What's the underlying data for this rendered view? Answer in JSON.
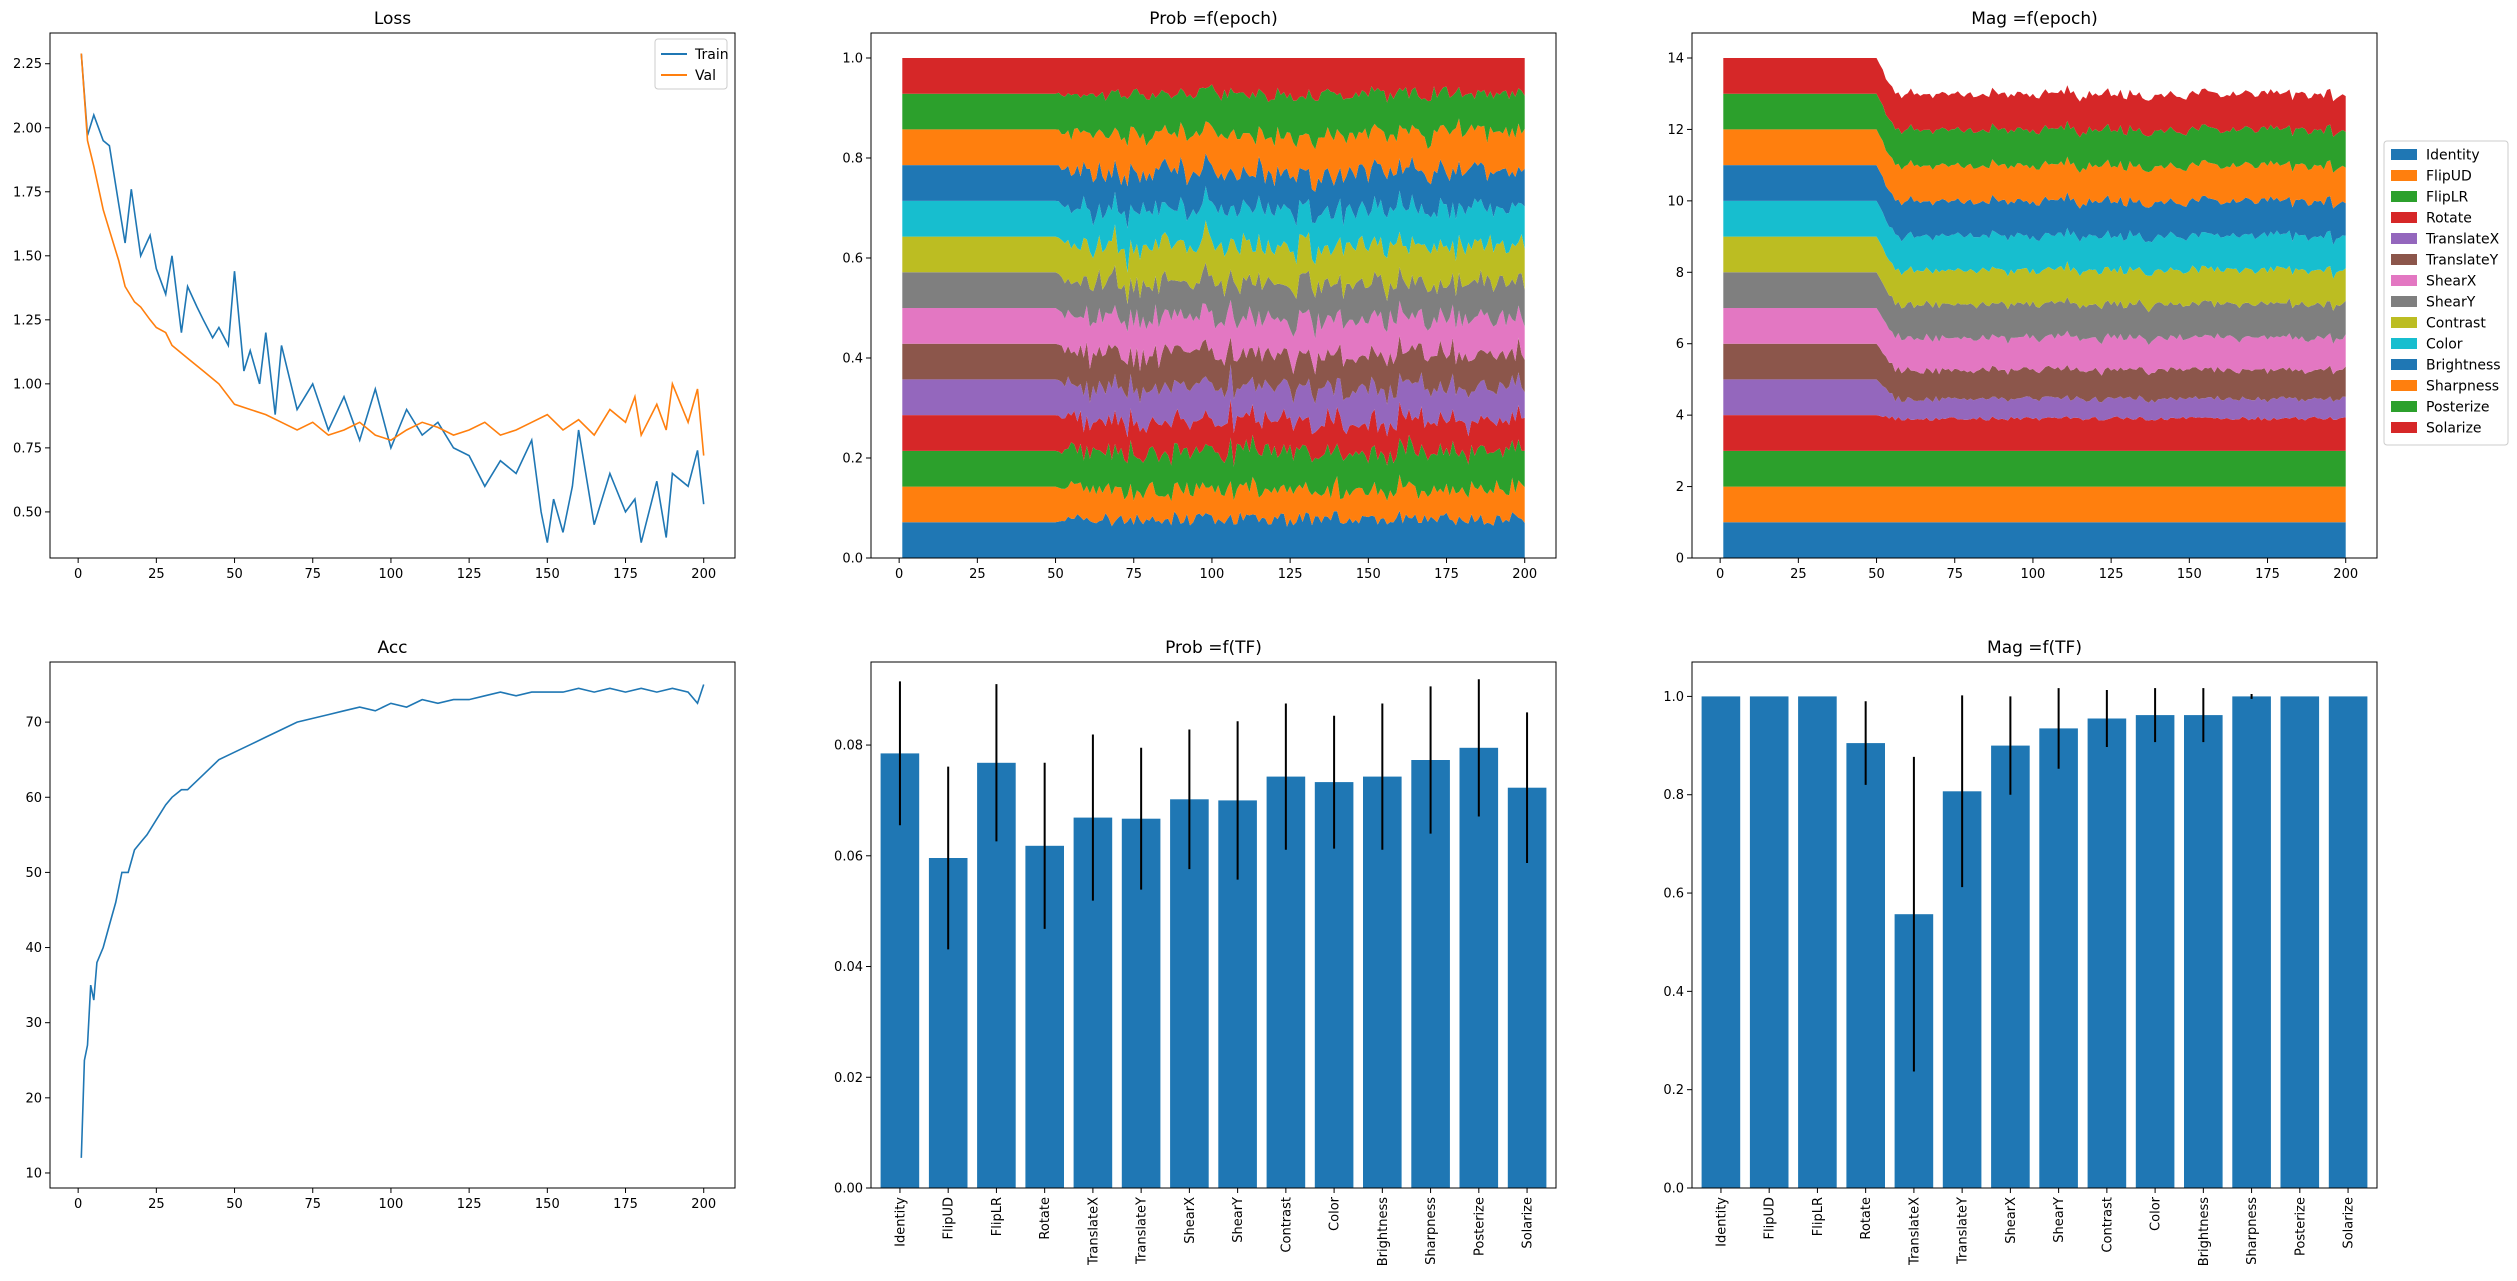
{
  "chart_data": [
    {
      "id": "loss",
      "type": "line",
      "title": "Loss",
      "xlabel": "",
      "ylabel": "",
      "xlim": [
        -9,
        210
      ],
      "ylim": [
        0.32,
        2.37
      ],
      "xticks": [
        0,
        25,
        50,
        75,
        100,
        125,
        150,
        175,
        200
      ],
      "yticks": [
        0.5,
        0.75,
        1.0,
        1.25,
        1.5,
        1.75,
        2.0,
        2.25
      ],
      "ytick_labels": [
        "0.50",
        "0.75",
        "1.00",
        "1.25",
        "1.50",
        "1.75",
        "2.00",
        "2.25"
      ],
      "legend": "top-right",
      "series": [
        {
          "name": "Train",
          "color": "#1f77b4",
          "x": [
            1,
            3,
            5,
            8,
            10,
            13,
            15,
            17,
            20,
            23,
            25,
            28,
            30,
            33,
            35,
            38,
            40,
            43,
            45,
            48,
            50,
            53,
            55,
            58,
            60,
            63,
            65,
            70,
            75,
            80,
            85,
            90,
            95,
            100,
            105,
            110,
            115,
            120,
            125,
            130,
            135,
            140,
            145,
            148,
            150,
            152,
            155,
            158,
            160,
            165,
            170,
            175,
            178,
            180,
            185,
            188,
            190,
            195,
            198,
            200
          ],
          "y": [
            2.29,
            1.97,
            2.05,
            1.95,
            1.93,
            1.7,
            1.55,
            1.76,
            1.5,
            1.58,
            1.45,
            1.35,
            1.5,
            1.2,
            1.38,
            1.3,
            1.25,
            1.18,
            1.22,
            1.15,
            1.44,
            1.05,
            1.13,
            1.0,
            1.2,
            0.88,
            1.15,
            0.9,
            1.0,
            0.82,
            0.95,
            0.78,
            0.98,
            0.75,
            0.9,
            0.8,
            0.85,
            0.75,
            0.72,
            0.6,
            0.7,
            0.65,
            0.78,
            0.5,
            0.38,
            0.55,
            0.42,
            0.6,
            0.82,
            0.45,
            0.65,
            0.5,
            0.55,
            0.38,
            0.62,
            0.4,
            0.65,
            0.6,
            0.74,
            0.53
          ]
        },
        {
          "name": "Val",
          "color": "#ff7f0e",
          "x": [
            1,
            3,
            5,
            8,
            10,
            13,
            15,
            18,
            20,
            23,
            25,
            28,
            30,
            35,
            40,
            45,
            50,
            55,
            60,
            65,
            70,
            75,
            80,
            85,
            90,
            95,
            100,
            105,
            110,
            115,
            120,
            125,
            130,
            135,
            140,
            145,
            150,
            155,
            160,
            165,
            170,
            175,
            178,
            180,
            185,
            188,
            190,
            195,
            198,
            200
          ],
          "y": [
            2.29,
            1.95,
            1.85,
            1.68,
            1.6,
            1.48,
            1.38,
            1.32,
            1.3,
            1.25,
            1.22,
            1.2,
            1.15,
            1.1,
            1.05,
            1.0,
            0.92,
            0.9,
            0.88,
            0.85,
            0.82,
            0.85,
            0.8,
            0.82,
            0.85,
            0.8,
            0.78,
            0.82,
            0.85,
            0.83,
            0.8,
            0.82,
            0.85,
            0.8,
            0.82,
            0.85,
            0.88,
            0.82,
            0.86,
            0.8,
            0.9,
            0.85,
            0.95,
            0.8,
            0.92,
            0.82,
            1.0,
            0.85,
            0.98,
            0.72
          ]
        }
      ]
    },
    {
      "id": "prob_epoch",
      "type": "area",
      "stacked": true,
      "title": "Prob =f(epoch)",
      "xlabel": "",
      "ylabel": "",
      "xlim": [
        -9,
        210
      ],
      "ylim": [
        0.0,
        1.05
      ],
      "xticks": [
        0,
        25,
        50,
        75,
        100,
        125,
        150,
        175,
        200
      ],
      "yticks": [
        0.0,
        0.2,
        0.4,
        0.6,
        0.8,
        1.0
      ],
      "ytick_labels": [
        "0.0",
        "0.2",
        "0.4",
        "0.6",
        "0.8",
        "1.0"
      ],
      "x_start": 1,
      "x_end": 200,
      "change_epoch": 50,
      "initial_value_each": 0.0714,
      "final_mean_values": [
        0.0785,
        0.0596,
        0.0768,
        0.0618,
        0.0669,
        0.0667,
        0.0702,
        0.07,
        0.0743,
        0.0733,
        0.0743,
        0.0773,
        0.0795,
        0.0723
      ],
      "series_ref": "transforms"
    },
    {
      "id": "mag_epoch",
      "type": "area",
      "stacked": true,
      "title": "Mag =f(epoch)",
      "xlabel": "",
      "ylabel": "",
      "xlim": [
        -9,
        210
      ],
      "ylim": [
        0,
        14.7
      ],
      "xticks": [
        0,
        25,
        50,
        75,
        100,
        125,
        150,
        175,
        200
      ],
      "yticks": [
        0,
        2,
        4,
        6,
        8,
        10,
        12,
        14
      ],
      "ytick_labels": [
        "0",
        "2",
        "4",
        "6",
        "8",
        "10",
        "12",
        "14"
      ],
      "x_start": 1,
      "x_end": 200,
      "change_epoch": 50,
      "initial_value_each": 1.0,
      "final_mean_values": [
        1.0,
        1.0,
        1.0,
        0.905,
        0.557,
        0.807,
        0.9,
        0.935,
        0.955,
        0.962,
        0.962,
        1.0,
        1.0,
        1.0
      ],
      "legend": "right-outside",
      "series_ref": "transforms"
    },
    {
      "id": "acc",
      "type": "line",
      "title": "Acc",
      "xlabel": "",
      "ylabel": "",
      "xlim": [
        -9,
        210
      ],
      "ylim": [
        8,
        78
      ],
      "xticks": [
        0,
        25,
        50,
        75,
        100,
        125,
        150,
        175,
        200
      ],
      "yticks": [
        10,
        20,
        30,
        40,
        50,
        60,
        70
      ],
      "ytick_labels": [
        "10",
        "20",
        "30",
        "40",
        "50",
        "60",
        "70"
      ],
      "series": [
        {
          "name": "",
          "color": "#1f77b4",
          "x": [
            1,
            2,
            3,
            4,
            5,
            6,
            8,
            10,
            12,
            14,
            16,
            18,
            20,
            22,
            25,
            28,
            30,
            33,
            35,
            40,
            45,
            50,
            55,
            60,
            65,
            70,
            75,
            80,
            85,
            90,
            95,
            100,
            105,
            110,
            115,
            120,
            125,
            130,
            135,
            140,
            145,
            150,
            155,
            160,
            165,
            170,
            175,
            180,
            185,
            190,
            195,
            198,
            200
          ],
          "y": [
            12,
            25,
            27,
            35,
            33,
            38,
            40,
            43,
            46,
            50,
            50,
            53,
            54,
            55,
            57,
            59,
            60,
            61,
            61,
            63,
            65,
            66,
            67,
            68,
            69,
            70,
            70.5,
            71,
            71.5,
            72,
            71.5,
            72.5,
            72,
            73,
            72.5,
            73,
            73,
            73.5,
            74,
            73.5,
            74,
            74,
            74,
            74.5,
            74,
            74.5,
            74,
            74.5,
            74,
            74.5,
            74,
            72.5,
            75
          ]
        }
      ]
    },
    {
      "id": "prob_tf",
      "type": "bar",
      "title": "Prob =f(TF)",
      "xlabel": "",
      "ylabel": "",
      "ylim": [
        0.0,
        0.095
      ],
      "yticks": [
        0.0,
        0.02,
        0.04,
        0.06,
        0.08
      ],
      "ytick_labels": [
        "0.00",
        "0.02",
        "0.04",
        "0.06",
        "0.08"
      ],
      "categories_ref": "transforms",
      "color": "#1f77b4",
      "values": [
        0.0785,
        0.0596,
        0.0768,
        0.0618,
        0.0669,
        0.0667,
        0.0702,
        0.07,
        0.0743,
        0.0733,
        0.0743,
        0.0773,
        0.0795,
        0.0723
      ],
      "errors": [
        0.013,
        0.0165,
        0.0142,
        0.015,
        0.015,
        0.0128,
        0.0126,
        0.0143,
        0.0132,
        0.012,
        0.0132,
        0.0133,
        0.0124,
        0.0136
      ]
    },
    {
      "id": "mag_tf",
      "type": "bar",
      "title": "Mag =f(TF)",
      "xlabel": "",
      "ylabel": "",
      "ylim": [
        0.0,
        1.07
      ],
      "yticks": [
        0.0,
        0.2,
        0.4,
        0.6,
        0.8,
        1.0
      ],
      "ytick_labels": [
        "0.0",
        "0.2",
        "0.4",
        "0.6",
        "0.8",
        "1.0"
      ],
      "categories_ref": "transforms",
      "color": "#1f77b4",
      "values": [
        1.0,
        1.0,
        1.0,
        0.905,
        0.557,
        0.807,
        0.9,
        0.935,
        0.955,
        0.962,
        0.962,
        1.0,
        1.0,
        1.0
      ],
      "errors": [
        0,
        0,
        0,
        0.085,
        0.32,
        0.195,
        0.1,
        0.082,
        0.058,
        0.055,
        0.055,
        0.005,
        0,
        0
      ]
    }
  ],
  "transforms": [
    {
      "name": "Identity",
      "color": "#1f77b4"
    },
    {
      "name": "FlipUD",
      "color": "#ff7f0e"
    },
    {
      "name": "FlipLR",
      "color": "#2ca02c"
    },
    {
      "name": "Rotate",
      "color": "#d62728"
    },
    {
      "name": "TranslateX",
      "color": "#9467bd"
    },
    {
      "name": "TranslateY",
      "color": "#8c564b"
    },
    {
      "name": "ShearX",
      "color": "#e377c2"
    },
    {
      "name": "ShearY",
      "color": "#7f7f7f"
    },
    {
      "name": "Contrast",
      "color": "#bcbd22"
    },
    {
      "name": "Color",
      "color": "#17becf"
    },
    {
      "name": "Brightness",
      "color": "#1f77b4"
    },
    {
      "name": "Sharpness",
      "color": "#ff7f0e"
    },
    {
      "name": "Posterize",
      "color": "#2ca02c"
    },
    {
      "name": "Solarize",
      "color": "#d62728"
    }
  ]
}
